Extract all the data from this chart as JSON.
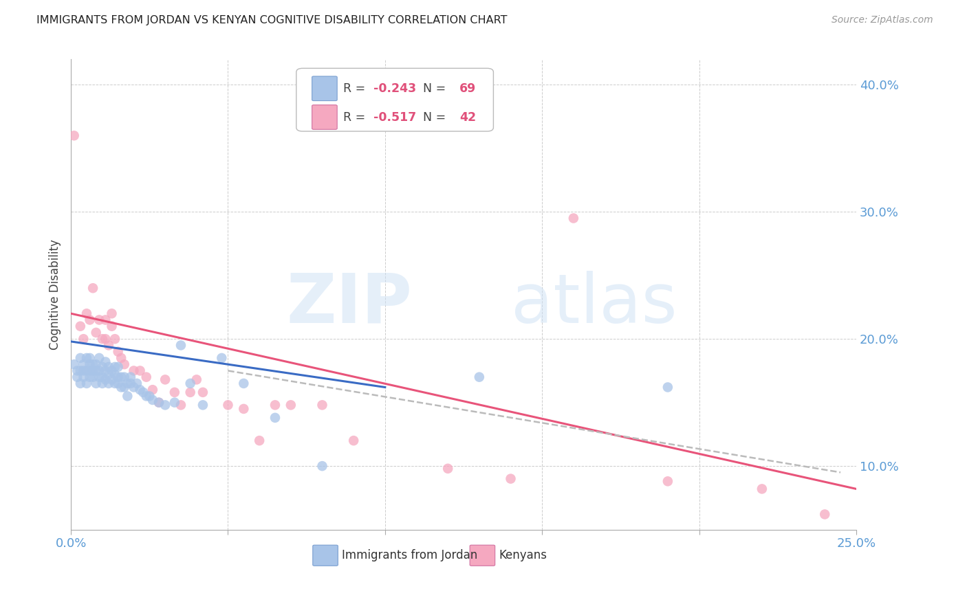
{
  "title": "IMMIGRANTS FROM JORDAN VS KENYAN COGNITIVE DISABILITY CORRELATION CHART",
  "source": "Source: ZipAtlas.com",
  "ylabel": "Cognitive Disability",
  "xlim": [
    0.0,
    0.25
  ],
  "ylim": [
    0.05,
    0.42
  ],
  "yticks": [
    0.1,
    0.2,
    0.3,
    0.4
  ],
  "ytick_labels": [
    "10.0%",
    "20.0%",
    "30.0%",
    "40.0%"
  ],
  "xticks": [
    0.0,
    0.05,
    0.1,
    0.15,
    0.2,
    0.25
  ],
  "xtick_labels": [
    "0.0%",
    "",
    "",
    "",
    "",
    "25.0%"
  ],
  "blue_R": -0.243,
  "blue_N": 69,
  "pink_R": -0.517,
  "pink_N": 42,
  "legend_label_blue": "Immigrants from Jordan",
  "legend_label_pink": "Kenyans",
  "blue_color": "#a8c4e8",
  "pink_color": "#f5a8c0",
  "blue_line_color": "#3a6bc4",
  "pink_line_color": "#e8547a",
  "gray_dash_color": "#bbbbbb",
  "blue_scatter_x": [
    0.001,
    0.002,
    0.002,
    0.003,
    0.003,
    0.003,
    0.004,
    0.004,
    0.004,
    0.005,
    0.005,
    0.005,
    0.006,
    0.006,
    0.006,
    0.006,
    0.007,
    0.007,
    0.007,
    0.008,
    0.008,
    0.008,
    0.009,
    0.009,
    0.009,
    0.01,
    0.01,
    0.01,
    0.011,
    0.011,
    0.011,
    0.012,
    0.012,
    0.012,
    0.013,
    0.013,
    0.014,
    0.014,
    0.014,
    0.015,
    0.015,
    0.015,
    0.016,
    0.016,
    0.017,
    0.017,
    0.018,
    0.018,
    0.019,
    0.019,
    0.02,
    0.021,
    0.022,
    0.023,
    0.024,
    0.025,
    0.026,
    0.028,
    0.03,
    0.033,
    0.035,
    0.038,
    0.042,
    0.048,
    0.055,
    0.065,
    0.08,
    0.13,
    0.19
  ],
  "blue_scatter_y": [
    0.18,
    0.17,
    0.175,
    0.165,
    0.175,
    0.185,
    0.17,
    0.18,
    0.175,
    0.165,
    0.175,
    0.185,
    0.17,
    0.175,
    0.18,
    0.185,
    0.17,
    0.175,
    0.18,
    0.165,
    0.175,
    0.18,
    0.17,
    0.175,
    0.185,
    0.165,
    0.17,
    0.178,
    0.168,
    0.175,
    0.182,
    0.165,
    0.172,
    0.178,
    0.168,
    0.175,
    0.165,
    0.172,
    0.178,
    0.165,
    0.17,
    0.178,
    0.162,
    0.17,
    0.162,
    0.17,
    0.165,
    0.155,
    0.165,
    0.17,
    0.162,
    0.165,
    0.16,
    0.158,
    0.155,
    0.155,
    0.152,
    0.15,
    0.148,
    0.15,
    0.195,
    0.165,
    0.148,
    0.185,
    0.165,
    0.138,
    0.1,
    0.17,
    0.162
  ],
  "pink_scatter_x": [
    0.001,
    0.003,
    0.004,
    0.005,
    0.006,
    0.007,
    0.008,
    0.009,
    0.01,
    0.011,
    0.011,
    0.012,
    0.013,
    0.013,
    0.014,
    0.015,
    0.016,
    0.017,
    0.02,
    0.022,
    0.024,
    0.026,
    0.028,
    0.03,
    0.033,
    0.035,
    0.038,
    0.04,
    0.042,
    0.05,
    0.055,
    0.06,
    0.065,
    0.07,
    0.08,
    0.09,
    0.12,
    0.14,
    0.16,
    0.19,
    0.22,
    0.24
  ],
  "pink_scatter_y": [
    0.36,
    0.21,
    0.2,
    0.22,
    0.215,
    0.24,
    0.205,
    0.215,
    0.2,
    0.215,
    0.2,
    0.195,
    0.21,
    0.22,
    0.2,
    0.19,
    0.185,
    0.18,
    0.175,
    0.175,
    0.17,
    0.16,
    0.15,
    0.168,
    0.158,
    0.148,
    0.158,
    0.168,
    0.158,
    0.148,
    0.145,
    0.12,
    0.148,
    0.148,
    0.148,
    0.12,
    0.098,
    0.09,
    0.295,
    0.088,
    0.082,
    0.062
  ],
  "watermark_zip": "ZIP",
  "watermark_atlas": "atlas",
  "background_color": "#ffffff",
  "grid_color": "#cccccc",
  "tick_color": "#5b9bd5",
  "axis_color": "#aaaaaa",
  "blue_line_x0": 0.0,
  "blue_line_y0": 0.198,
  "blue_line_x1": 0.1,
  "blue_line_y1": 0.162,
  "pink_line_x0": 0.0,
  "pink_line_y0": 0.22,
  "pink_line_x1": 0.25,
  "pink_line_y1": 0.082,
  "gray_line_x0": 0.05,
  "gray_line_y0": 0.175,
  "gray_line_x1": 0.245,
  "gray_line_y1": 0.095
}
